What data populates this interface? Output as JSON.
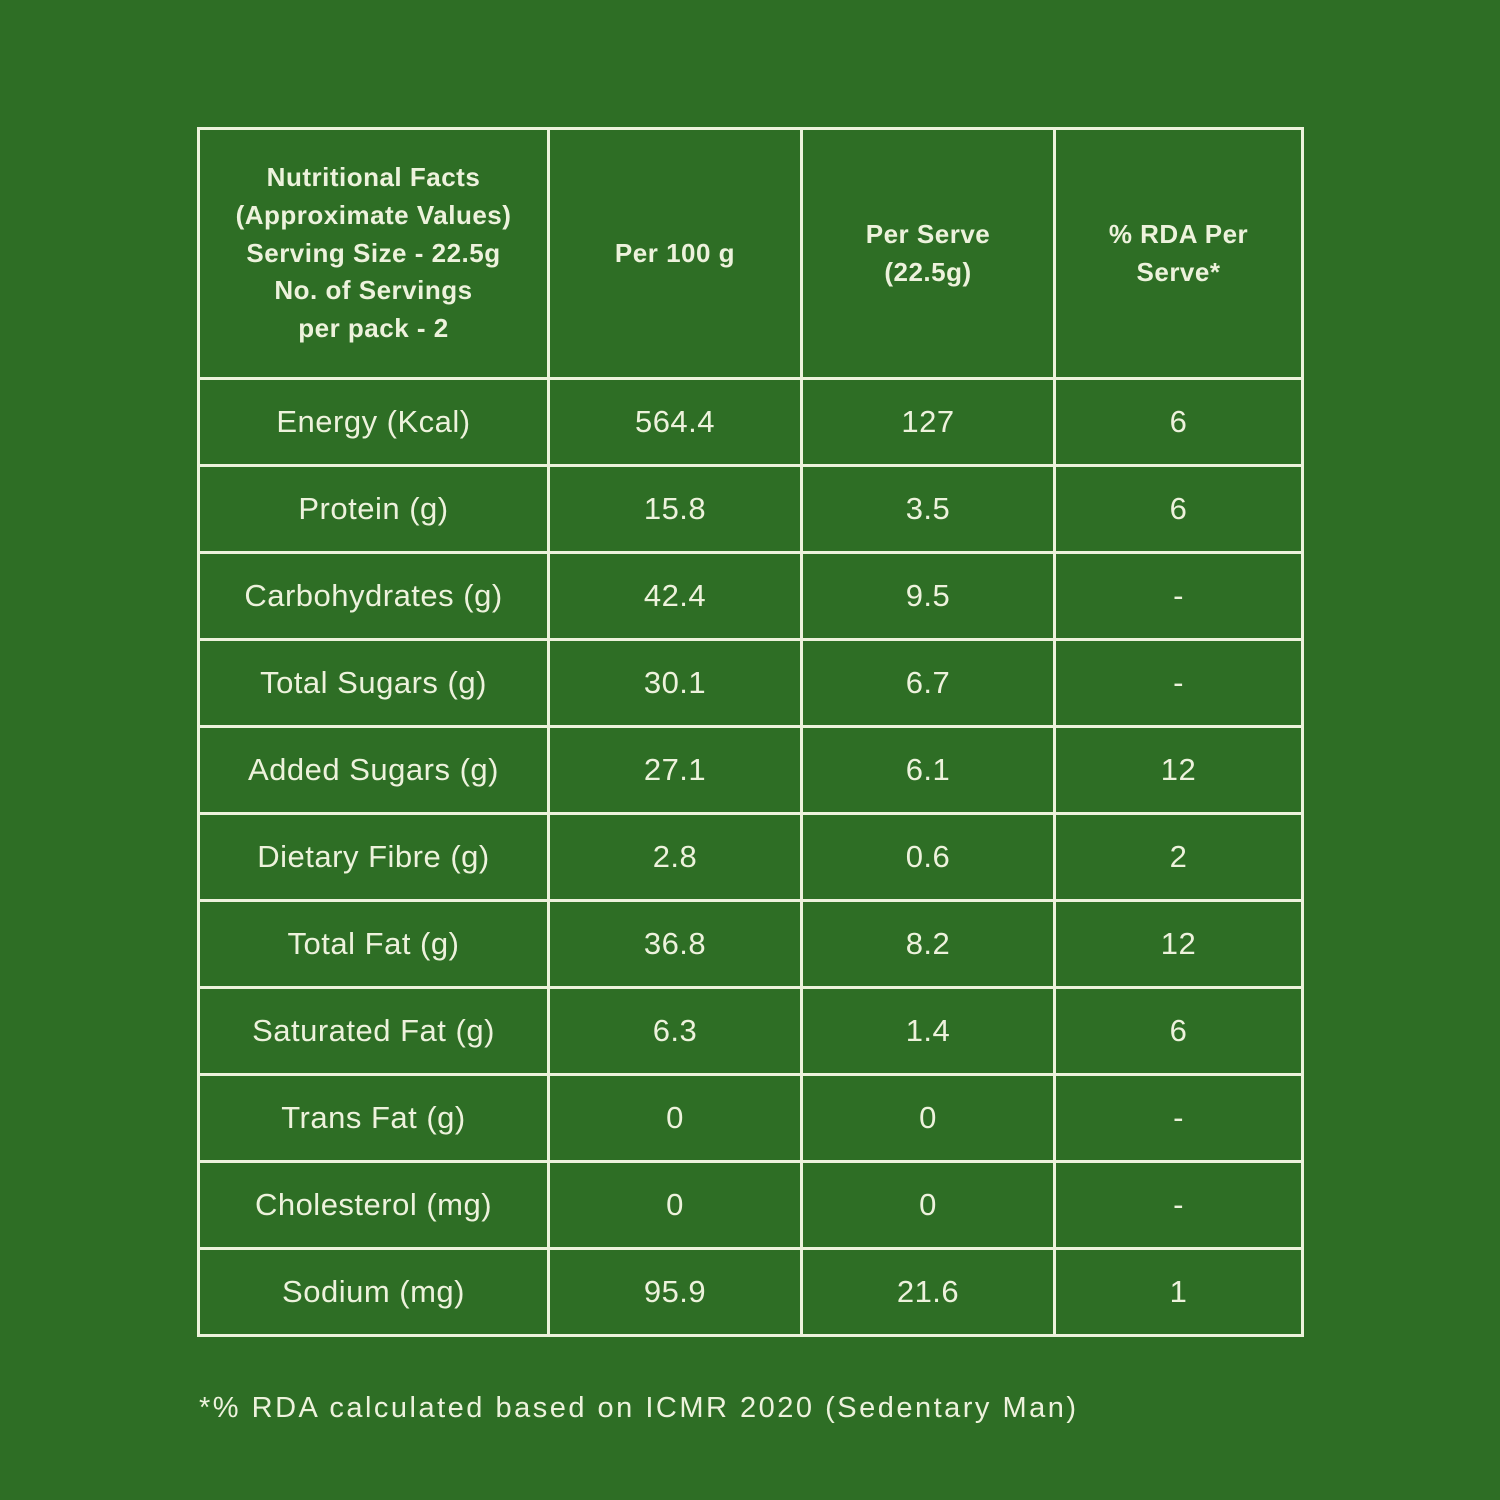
{
  "colors": {
    "background": "#2e6e25",
    "foreground": "#edf2dc"
  },
  "table": {
    "header": {
      "title": "Nutritional Facts\n(Approximate Values)\nServing Size - 22.5g\nNo. of Servings\nper pack - 2",
      "per_100g": "Per 100 g",
      "per_serve": "Per Serve\n(22.5g)",
      "rda": "% RDA Per\nServe*"
    },
    "rows": [
      {
        "label": "Energy (Kcal)",
        "per_100g": "564.4",
        "per_serve": "127",
        "rda": "6"
      },
      {
        "label": "Protein (g)",
        "per_100g": "15.8",
        "per_serve": "3.5",
        "rda": "6"
      },
      {
        "label": "Carbohydrates (g)",
        "per_100g": "42.4",
        "per_serve": "9.5",
        "rda": "-"
      },
      {
        "label": "Total Sugars (g)",
        "per_100g": "30.1",
        "per_serve": "6.7",
        "rda": "-"
      },
      {
        "label": "Added Sugars (g)",
        "per_100g": "27.1",
        "per_serve": "6.1",
        "rda": "12"
      },
      {
        "label": "Dietary Fibre (g)",
        "per_100g": "2.8",
        "per_serve": "0.6",
        "rda": "2"
      },
      {
        "label": "Total Fat (g)",
        "per_100g": "36.8",
        "per_serve": "8.2",
        "rda": "12"
      },
      {
        "label": "Saturated Fat (g)",
        "per_100g": "6.3",
        "per_serve": "1.4",
        "rda": "6"
      },
      {
        "label": "Trans Fat (g)",
        "per_100g": "0",
        "per_serve": "0",
        "rda": "-"
      },
      {
        "label": "Cholesterol (mg)",
        "per_100g": "0",
        "per_serve": "0",
        "rda": "-"
      },
      {
        "label": "Sodium (mg)",
        "per_100g": "95.9",
        "per_serve": "21.6",
        "rda": "1"
      }
    ]
  },
  "footnote": "*% RDA calculated based on ICMR 2020 (Sedentary Man)"
}
